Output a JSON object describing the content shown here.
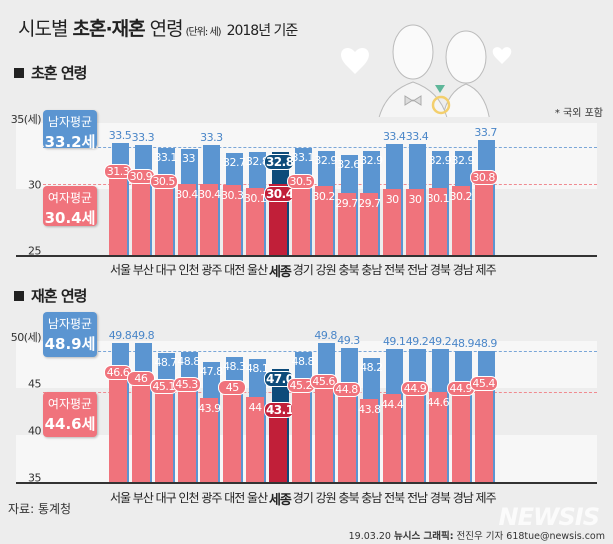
{
  "title": {
    "main_prefix": "시도별 ",
    "main_bold": "초혼·재혼",
    "main_suffix": " 연령",
    "unit": "(단위: 세)",
    "base": "2018년 기준"
  },
  "note": "* 국외 포함",
  "colors": {
    "male": "#5b95d1",
    "female": "#f0737c",
    "male_highlight": "#0d4b7a",
    "female_highlight": "#c11f39",
    "band": "#f7f7f7",
    "background": "#ededed"
  },
  "chart_data": [
    {
      "type": "bar",
      "title": "초혼 연령",
      "ylabel": "(세)",
      "ylim": [
        25,
        35
      ],
      "yticks": [
        "35(세)",
        "30",
        "25"
      ],
      "highlight": "세종",
      "categories": [
        "서울",
        "부산",
        "대구",
        "인천",
        "광주",
        "대전",
        "울산",
        "세종",
        "경기",
        "강원",
        "충북",
        "충남",
        "전북",
        "전남",
        "경북",
        "경남",
        "제주"
      ],
      "series": [
        {
          "name": "남자평균",
          "average": "33.2세",
          "average_value": 33.2,
          "values": [
            33.5,
            33.3,
            33.1,
            33,
            33.3,
            32.7,
            32.8,
            32.8,
            33.1,
            32.9,
            32.6,
            32.9,
            33.4,
            33.4,
            32.9,
            32.9,
            33.7
          ],
          "labels": [
            "33.5",
            "33.3",
            "33.1",
            "33",
            "33.3",
            "32.7",
            "32.8",
            "32.8",
            "33.1",
            "32.9",
            "32.6",
            "32.9",
            "33.4",
            "33.4",
            "32.9",
            "32.9",
            "33.7"
          ]
        },
        {
          "name": "여자평균",
          "average": "30.4세",
          "average_value": 30.4,
          "values": [
            31.3,
            30.9,
            30.5,
            30.4,
            30.4,
            30.3,
            30.1,
            30.4,
            30.5,
            30.2,
            29.7,
            29.7,
            30,
            30,
            30.1,
            30.2,
            30.8
          ],
          "labels": [
            "31.3",
            "30.9",
            "30.5",
            "30.4",
            "30.4",
            "30.3",
            "30.1",
            "30.4",
            "30.5",
            "30.2",
            "29.7",
            "29.7",
            "30",
            "30",
            "30.1",
            "30.2",
            "30.8"
          ]
        }
      ]
    },
    {
      "type": "bar",
      "title": "재혼 연령",
      "ylabel": "(세)",
      "ylim": [
        35,
        50
      ],
      "yticks": [
        "50(세)",
        "45",
        "40",
        "35"
      ],
      "highlight": "세종",
      "categories": [
        "서울",
        "부산",
        "대구",
        "인천",
        "광주",
        "대전",
        "울산",
        "세종",
        "경기",
        "강원",
        "충북",
        "충남",
        "전북",
        "전남",
        "경북",
        "경남",
        "제주"
      ],
      "series": [
        {
          "name": "남자평균",
          "average": "48.9세",
          "average_value": 48.9,
          "values": [
            49.8,
            49.8,
            48.7,
            48.8,
            47.8,
            48.3,
            48.1,
            47.0,
            48.8,
            49.8,
            49.3,
            48.2,
            49.1,
            49.2,
            49.2,
            48.9,
            48.9
          ],
          "labels": [
            "49.8",
            "49.8",
            "48.7",
            "48.8",
            "47.8",
            "48.3",
            "48.1",
            "47.0",
            "48.8",
            "49.8",
            "49.3",
            "48.2",
            "49.1",
            "49.2",
            "49.2",
            "48.9",
            "48.9"
          ]
        },
        {
          "name": "여자평균",
          "average": "44.6세",
          "average_value": 44.6,
          "values": [
            46.6,
            46,
            45.1,
            45.3,
            43.9,
            45,
            44,
            43.1,
            45.2,
            45.6,
            44.8,
            43.8,
            44.4,
            44.9,
            44.6,
            44.9,
            45.4
          ],
          "labels": [
            "46.6",
            "46",
            "45.1",
            "45.3",
            "43.9",
            "45",
            "44",
            "43.1",
            "45.2",
            "45.6",
            "44.8",
            "43.8",
            "44.4",
            "44.9",
            "44.6",
            "44.9",
            "45.4"
          ]
        }
      ]
    }
  ],
  "source": "자료: 통계청",
  "credit": {
    "date": "19.03.20",
    "agency": "뉴시스 그래픽:",
    "author": "전진우 기자 618tue@newsis.com"
  },
  "watermark": "NEWSIS"
}
